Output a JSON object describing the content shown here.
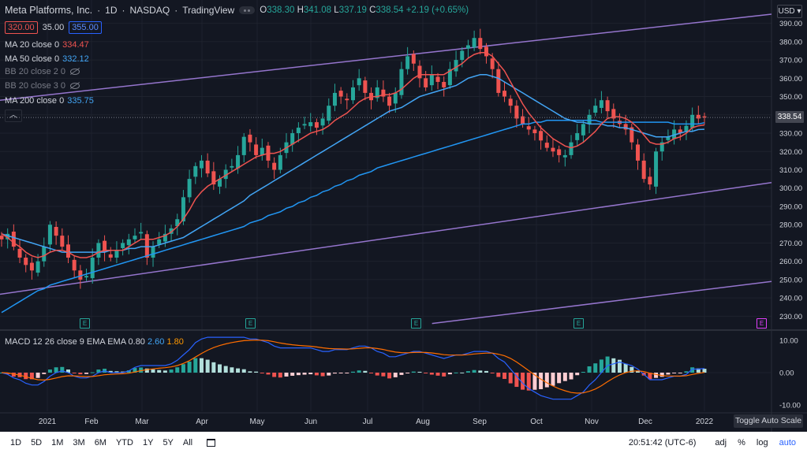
{
  "header": {
    "symbol_name": "Meta Platforms, Inc.",
    "sep1": "·",
    "interval": "1D",
    "sep2": "·",
    "exchange": "NASDAQ",
    "sep3": "·",
    "source": "TradingView",
    "open_label": "O",
    "open": "338.30",
    "high_label": "H",
    "high": "341.08",
    "low_label": "L",
    "low": "337.19",
    "close_label": "C",
    "close": "338.54",
    "change": "+2.19 (+0.65%)"
  },
  "inputs": {
    "lower": "320.00",
    "step": "35.00",
    "upper": "355.00"
  },
  "indicators": [
    {
      "label": "MA 20 close 0",
      "value": "334.47",
      "color": "#ef5350",
      "visible": true
    },
    {
      "label": "MA 50 close 0",
      "value": "332.12",
      "color": "#42a5f5",
      "visible": true
    },
    {
      "label": "BB 20 close 2 0",
      "value": "",
      "visible": false
    },
    {
      "label": "BB 20 close 3 0",
      "value": "",
      "visible": false
    },
    {
      "label": "MA 200 close 0",
      "value": "335.75",
      "color": "#42a5f5",
      "visible": true
    }
  ],
  "collapse_icon": "chevron-up-icon",
  "macd": {
    "label": "MACD 12 26 close 9 EMA EMA",
    "v1": "0.80",
    "v2": "2.60",
    "v3": "1.80"
  },
  "price_axis": {
    "currency": "USD",
    "ticks": [
      "390.00",
      "380.00",
      "370.00",
      "360.00",
      "350.00",
      "340.00",
      "330.00",
      "320.00",
      "310.00",
      "300.00",
      "290.00",
      "280.00",
      "270.00",
      "260.00",
      "250.00",
      "240.00",
      "230.00"
    ],
    "last_price": "338.54"
  },
  "macd_axis": {
    "ticks": [
      "10.00",
      "0.00",
      "-10.00"
    ]
  },
  "time_axis": {
    "labels": [
      "2021",
      "Feb",
      "Mar",
      "Apr",
      "May",
      "Jun",
      "Jul",
      "Aug",
      "Sep",
      "Oct",
      "Nov",
      "Dec",
      "2022"
    ]
  },
  "toggle_auto_scale": "Toggle Auto Scale",
  "bottom_bar": {
    "ranges": [
      "1D",
      "5D",
      "1M",
      "3M",
      "6M",
      "YTD",
      "1Y",
      "5Y",
      "All"
    ],
    "calendar_icon": "calendar-icon",
    "time": "20:51:42 (UTC-6)",
    "adj": "adj",
    "percent": "%",
    "log": "log",
    "auto": "auto"
  },
  "earnings_marker": "E",
  "colors": {
    "background": "#131722",
    "up": "#26a69a",
    "down": "#ef5350",
    "ma20": "#ef5350",
    "ma50": "#2196f3",
    "channel": "#9575cd",
    "macd": "#2962ff",
    "signal": "#ff6d00"
  },
  "chart_data": {
    "type": "candlestick",
    "ylim": [
      225,
      395
    ],
    "x_start": "2021-01-01",
    "x_end": "2022-01-01",
    "closes": [
      272,
      275,
      268,
      262,
      258,
      255,
      260,
      268,
      280,
      274,
      268,
      262,
      255,
      250,
      252,
      262,
      270,
      265,
      262,
      266,
      270,
      272,
      274,
      276,
      262,
      268,
      272,
      275,
      278,
      283,
      295,
      305,
      312,
      315,
      308,
      302,
      305,
      310,
      312,
      318,
      328,
      325,
      318,
      322,
      315,
      310,
      318,
      325,
      330,
      333,
      335,
      336,
      333,
      338,
      345,
      352,
      350,
      348,
      355,
      360,
      352,
      348,
      355,
      350,
      345,
      352,
      365,
      372,
      368,
      360,
      355,
      362,
      358,
      355,
      365,
      370,
      375,
      378,
      382,
      376,
      372,
      365,
      352,
      350,
      345,
      338,
      335,
      332,
      330,
      326,
      322,
      320,
      318,
      318,
      325,
      330,
      335,
      340,
      345,
      348,
      342,
      338,
      335,
      332,
      325,
      315,
      305,
      302,
      320,
      325,
      328,
      332,
      330,
      334,
      340,
      338,
      338.54
    ],
    "ma20": [
      275,
      273,
      270,
      268,
      265,
      263,
      262,
      263,
      265,
      266,
      266,
      265,
      263,
      262,
      262,
      263,
      265,
      266,
      266,
      266,
      266,
      268,
      270,
      272,
      272,
      272,
      273,
      274,
      276,
      279,
      283,
      288,
      294,
      298,
      301,
      303,
      305,
      307,
      309,
      311,
      313,
      315,
      317,
      318,
      319,
      319,
      320,
      322,
      324,
      326,
      328,
      330,
      331,
      332,
      334,
      337,
      339,
      341,
      344,
      347,
      349,
      350,
      350,
      351,
      351,
      352,
      354,
      357,
      360,
      362,
      362,
      362,
      362,
      362,
      364,
      366,
      368,
      371,
      373,
      374,
      374,
      372,
      368,
      364,
      358,
      352,
      346,
      341,
      337,
      333,
      330,
      327,
      325,
      323,
      322,
      323,
      325,
      328,
      331,
      335,
      338,
      339,
      339,
      338,
      336,
      333,
      329,
      325,
      324,
      324,
      325,
      327,
      328,
      330,
      333,
      334,
      334.47
    ],
    "ma50": [
      275,
      274,
      273,
      272,
      271,
      270,
      269,
      268,
      267,
      266,
      265,
      265,
      265,
      265,
      265,
      265,
      265,
      265,
      266,
      266,
      266,
      267,
      267,
      268,
      268,
      268,
      269,
      270,
      271,
      272,
      273,
      275,
      277,
      279,
      281,
      283,
      285,
      287,
      289,
      291,
      293,
      296,
      298,
      300,
      302,
      304,
      306,
      308,
      310,
      312,
      314,
      316,
      318,
      320,
      322,
      324,
      326,
      328,
      330,
      332,
      334,
      336,
      338,
      340,
      342,
      343,
      344,
      346,
      348,
      350,
      351,
      352,
      353,
      354,
      355,
      356,
      358,
      360,
      361,
      362,
      362,
      361,
      360,
      358,
      356,
      354,
      352,
      350,
      348,
      346,
      344,
      342,
      340,
      338,
      337,
      336,
      336,
      335,
      335,
      335,
      334,
      334,
      333,
      333,
      332,
      331,
      330,
      329,
      328,
      328,
      328,
      329,
      330,
      331,
      331,
      332,
      332.12
    ],
    "ma200": [
      232,
      234,
      236,
      238,
      240,
      242,
      244,
      245,
      247,
      248,
      249,
      250,
      251,
      252,
      253,
      254,
      255,
      256,
      257,
      258,
      259,
      260,
      261,
      262,
      263,
      264,
      265,
      266,
      267,
      268,
      269,
      270,
      271,
      272,
      273,
      274,
      275,
      276,
      277,
      278,
      279,
      281,
      282,
      283,
      285,
      286,
      287,
      289,
      290,
      292,
      293,
      295,
      296,
      298,
      299,
      301,
      302,
      304,
      305,
      307,
      308,
      309,
      311,
      312,
      313,
      314,
      315,
      316,
      317,
      318,
      319,
      320,
      321,
      322,
      323,
      324,
      325,
      326,
      327,
      328,
      329,
      330,
      331,
      332,
      333,
      334,
      335,
      335,
      336,
      336,
      337,
      337,
      337,
      337,
      337,
      337,
      337,
      337,
      337,
      336,
      336,
      336,
      336,
      336,
      336,
      336,
      336,
      336,
      336,
      336,
      336,
      335,
      335,
      335,
      335,
      335,
      335.75
    ],
    "channel_upper": [
      [
        0,
        348
      ],
      [
        1,
        395
      ]
    ],
    "channel_lower": [
      [
        0,
        242
      ],
      [
        1,
        303
      ]
    ],
    "channel_bottom": [
      [
        0.56,
        226
      ],
      [
        1,
        249
      ]
    ],
    "macd_ylim": [
      -12,
      12
    ]
  }
}
